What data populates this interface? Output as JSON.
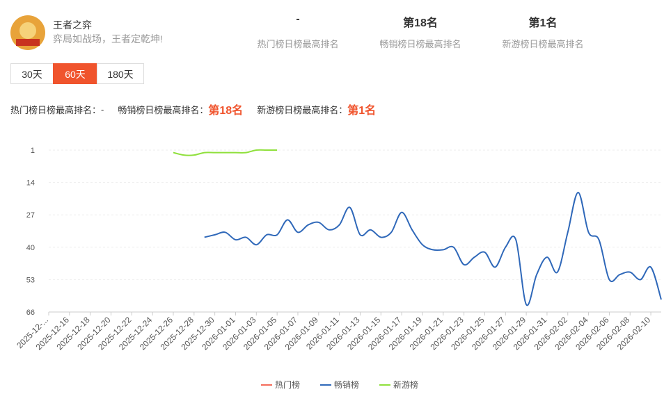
{
  "header": {
    "title": "王者之弈",
    "subtitle": "弈局如战场，王者定乾坤!",
    "stats": [
      {
        "value": "-",
        "label": "热门榜日榜最高排名"
      },
      {
        "value": "第18名",
        "label": "畅销榜日榜最高排名"
      },
      {
        "value": "第1名",
        "label": "新游榜日榜最高排名"
      }
    ]
  },
  "tabs": [
    "30天",
    "60天",
    "180天"
  ],
  "active_tab": 1,
  "summary": [
    {
      "label": "热门榜日榜最高排名：",
      "value": "-"
    },
    {
      "label": "畅销榜日榜最高排名：",
      "value": "第18名"
    },
    {
      "label": "新游榜日榜最高排名：",
      "value": "第1名"
    }
  ],
  "chart_data": {
    "type": "line",
    "ylim": [
      1,
      66
    ],
    "y_inverted": true,
    "yticks": [
      1,
      14,
      27,
      40,
      53,
      66
    ],
    "grid": true,
    "categories": [
      "2025-12-...",
      null,
      "2025-12-16",
      null,
      "2025-12-18",
      null,
      "2025-12-20",
      null,
      "2025-12-22",
      null,
      "2025-12-24",
      null,
      "2025-12-26",
      null,
      "2025-12-28",
      null,
      "2025-12-30",
      null,
      "2026-01-01",
      null,
      "2026-01-03",
      null,
      "2026-01-05",
      null,
      "2026-01-07",
      null,
      "2026-01-09",
      null,
      "2026-01-11",
      null,
      "2026-01-13",
      null,
      "2026-01-15",
      null,
      "2026-01-17",
      null,
      "2026-01-19",
      null,
      "2026-01-21",
      null,
      "2026-01-23",
      null,
      "2026-01-25",
      null,
      "2026-01-27",
      null,
      "2026-01-29",
      null,
      "2026-01-31",
      null,
      "2026-02-02",
      null,
      "2026-02-04",
      null,
      "2026-02-06",
      null,
      "2026-02-08",
      null,
      "2026-02-10",
      null
    ],
    "series": [
      {
        "name": "热门榜",
        "color": "#f56c5b",
        "values": [
          null,
          null,
          null,
          null,
          null,
          null,
          null,
          null,
          null,
          null,
          null,
          null,
          null,
          null,
          null,
          null,
          null,
          null,
          null,
          null,
          null,
          null,
          null,
          null,
          null,
          null,
          null,
          null,
          null,
          null,
          null,
          null,
          null,
          null,
          null,
          null,
          null,
          null,
          null,
          null,
          null,
          null,
          null,
          null,
          null,
          null,
          null,
          null,
          null,
          null,
          null,
          null,
          null,
          null,
          null,
          null,
          null,
          null,
          null,
          null
        ]
      },
      {
        "name": "畅销榜",
        "color": "#2f68b9",
        "values": [
          null,
          null,
          null,
          null,
          null,
          null,
          null,
          null,
          null,
          null,
          null,
          null,
          null,
          null,
          null,
          36,
          35,
          34,
          37,
          36,
          39,
          35,
          35,
          29,
          34,
          31,
          30,
          33,
          31,
          24,
          35,
          33,
          36,
          34,
          26,
          33,
          39,
          41,
          41,
          40,
          47,
          44,
          42,
          48,
          40,
          37,
          63,
          51,
          44,
          50,
          34,
          18,
          34,
          37,
          53,
          51,
          50,
          53,
          48,
          61
        ]
      },
      {
        "name": "新游榜",
        "color": "#8fe03c",
        "values": [
          null,
          null,
          null,
          null,
          null,
          null,
          null,
          null,
          null,
          null,
          null,
          null,
          2,
          3,
          3,
          2,
          2,
          2,
          2,
          2,
          1,
          1,
          1,
          null,
          null,
          null,
          null,
          null,
          null,
          null,
          null,
          null,
          null,
          null,
          null,
          null,
          null,
          null,
          null,
          null,
          null,
          null,
          null,
          null,
          null,
          null,
          null,
          null,
          null,
          null,
          null,
          null,
          null,
          null,
          null,
          null,
          null,
          null,
          null,
          null
        ]
      }
    ]
  }
}
